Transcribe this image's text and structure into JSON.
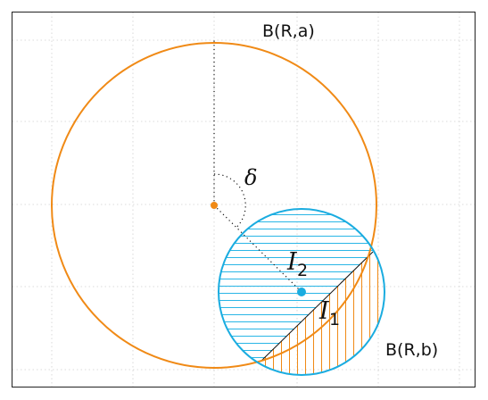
{
  "labels": {
    "big_ball": "B(R,a)",
    "small_ball": "B(R,b)",
    "angle": "δ",
    "region_1": "I",
    "region_1_sub": "1",
    "region_2": "I",
    "region_2_sub": "2"
  },
  "colors": {
    "big_circle": "#f08a16",
    "small_circle": "#1aace0",
    "hatch_horizontal": "#2ab6e6",
    "hatch_vertical": "#f08a16",
    "grid": "#cfcfcf",
    "frame": "#222222"
  }
}
